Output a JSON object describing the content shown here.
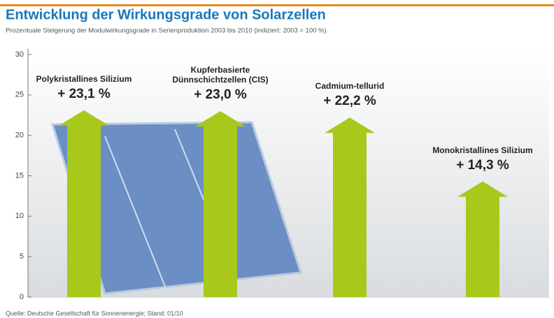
{
  "chart_data": {
    "type": "arrow-bar",
    "title": "Entwicklung der Wirkungsgrade von Solarzellen",
    "subtitle": "Prozentuale Steigerung der Modulwirkungsgrade in Serienproduktion 2003 bis 2010 (indiziert: 2003 = 100 %)",
    "categories": [
      "Polykristallines Silizium",
      "Kupferbasierte Dünnschichtzellen (CIS)",
      "Cadmium-tellurid",
      "Monokristallines Silizium"
    ],
    "values": [
      23.1,
      23.0,
      22.2,
      14.3
    ],
    "value_labels": [
      "+ 23,1 %",
      "+ 23,0 %",
      "+ 22,2 %",
      "+ 14,3 %"
    ],
    "color": "#a8c81c",
    "ylim": [
      0,
      30
    ],
    "yticks": [
      0,
      5,
      10,
      15,
      20,
      25,
      30
    ],
    "source": "Quelle: Deutsche Gesellschaft für Sonnenenergie; Stand: 01/10"
  }
}
